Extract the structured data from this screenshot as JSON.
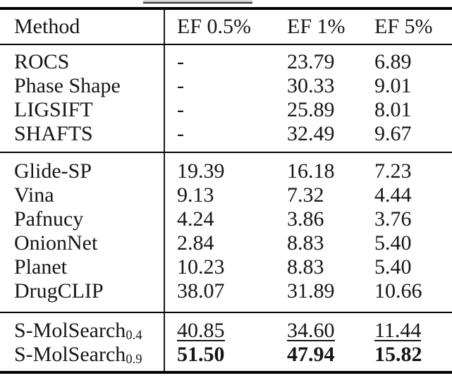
{
  "table": {
    "header": {
      "method_label": "Method",
      "col2_label": "EF 0.5%",
      "col3_label": "EF 1%",
      "col4_label": "EF 5%"
    },
    "groups": [
      {
        "rows": [
          {
            "method": "ROCS",
            "values": [
              "-",
              "23.79",
              "6.89"
            ]
          },
          {
            "method": "Phase Shape",
            "values": [
              "-",
              "30.33",
              "9.01"
            ]
          },
          {
            "method": "LIGSIFT",
            "values": [
              "-",
              "25.89",
              "8.01"
            ]
          },
          {
            "method": "SHAFTS",
            "values": [
              "-",
              "32.49",
              "9.67"
            ]
          }
        ]
      },
      {
        "rows": [
          {
            "method": "Glide-SP",
            "values": [
              "19.39",
              "16.18",
              "7.23"
            ]
          },
          {
            "method": "Vina",
            "values": [
              "9.13",
              "7.32",
              "4.44"
            ]
          },
          {
            "method": "Pafnucy",
            "values": [
              "4.24",
              "3.86",
              "3.76"
            ]
          },
          {
            "method": "OnionNet",
            "values": [
              "2.84",
              "8.83",
              "5.40"
            ]
          },
          {
            "method": "Planet",
            "values": [
              "10.23",
              "8.83",
              "5.40"
            ]
          },
          {
            "method": "DrugCLIP",
            "values": [
              "38.07",
              "31.89",
              "10.66"
            ]
          }
        ]
      },
      {
        "rows": [
          {
            "method": "S-MolSearch",
            "subscript": "0.4",
            "style": "underline",
            "values": [
              "40.85",
              "34.60",
              "11.44"
            ]
          },
          {
            "method": "S-MolSearch",
            "subscript": "0.9",
            "style": "bold",
            "values": [
              "51.50",
              "47.94",
              "15.82"
            ]
          }
        ]
      }
    ]
  }
}
